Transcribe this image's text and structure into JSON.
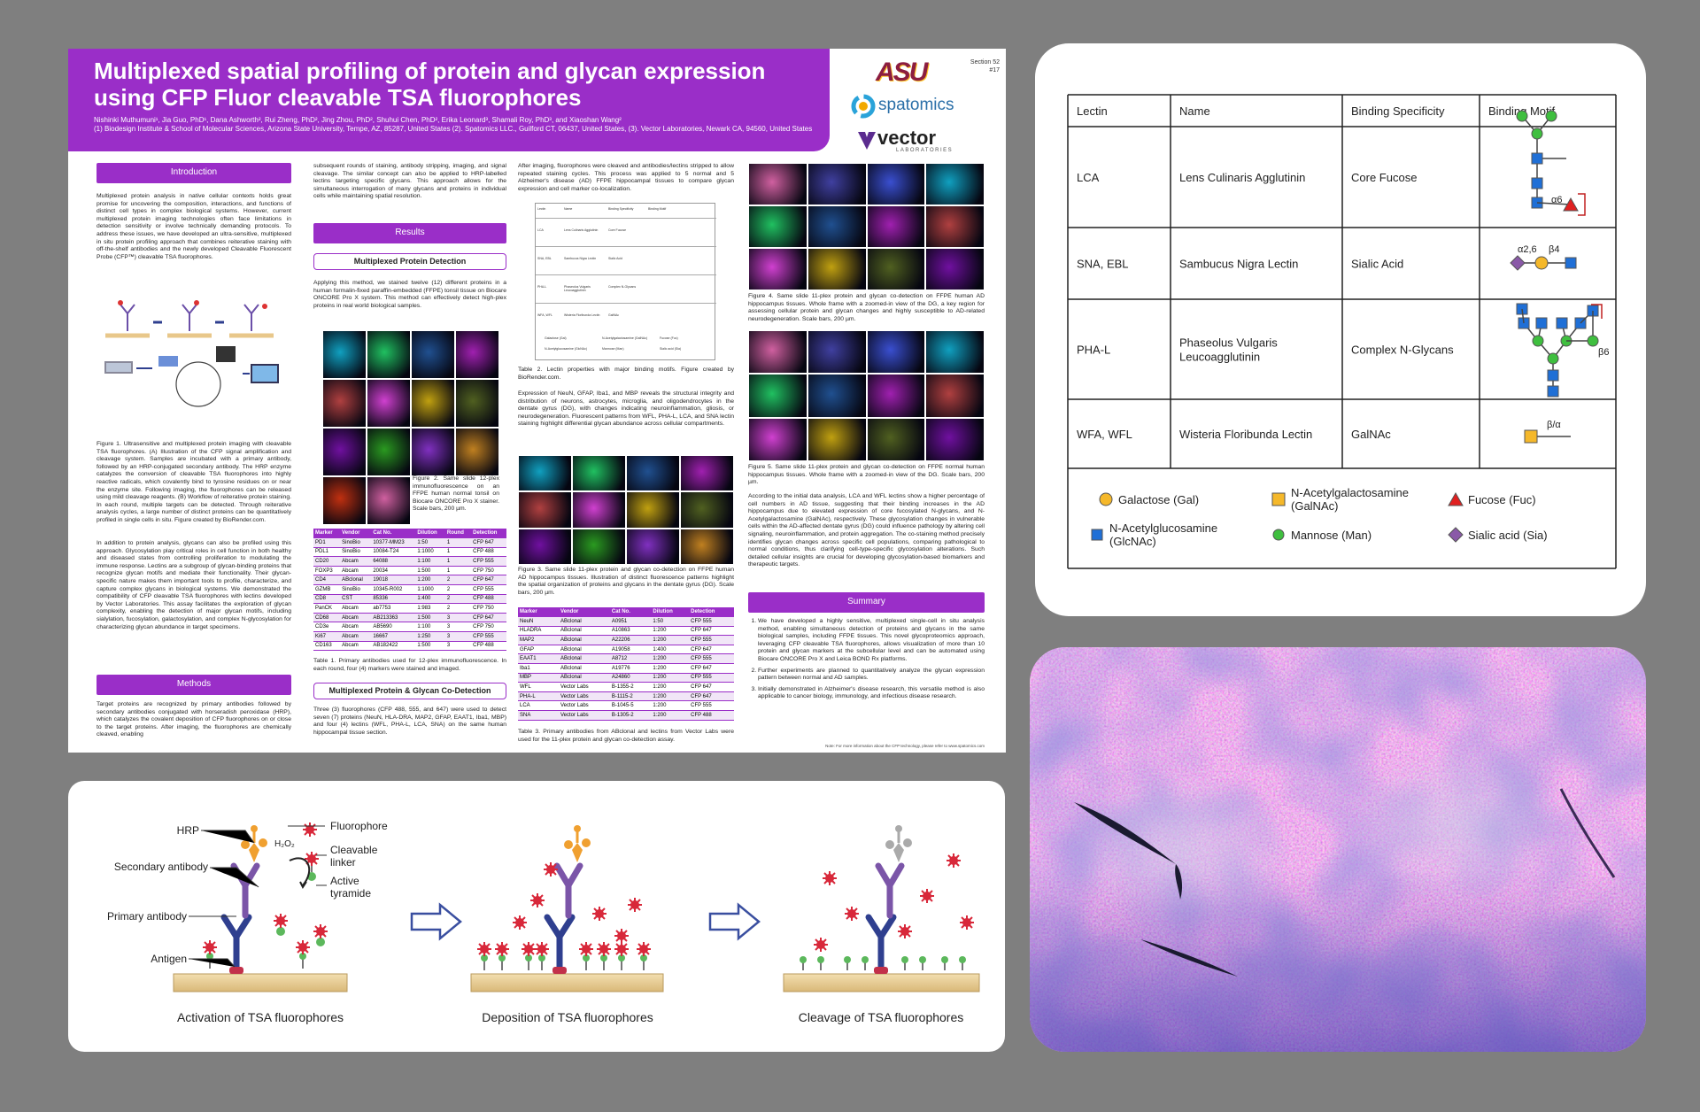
{
  "poster": {
    "title": "Multiplexed spatial profiling of protein and glycan expression using CFP Fluor cleavable TSA fluorophores",
    "authors": "Nishinki Muthumuni¹, Jia Guo, PhD¹, Dana Ashworth², Rui Zheng, PhD², Jing Zhou, PhD², Shuhui Chen, PhD², Erika Leonard³, Shamali Roy, PhD³, and Xiaoshan Wang²",
    "affiliations": "(1) Biodesign Institute & School of Molecular Sciences, Arizona State University, Tempe, AZ, 85287, United States (2). Spatomics LLC., Guilford CT, 06437, United States, (3). Vector Laboratories, Newark CA, 94560, United States",
    "section": "Section 52",
    "number": "#17",
    "logos": [
      "ASU",
      "spatomics",
      "vector",
      "LABORATORIES"
    ],
    "intro_heading": "Introduction",
    "intro": "Multiplexed protein analysis in native cellular contexts holds great promise for uncovering the composition, interactions, and functions of distinct cell types in complex biological systems. However, current multiplexed protein imaging technologies often face limitations in detection sensitivity or involve technically demanding protocols. To address these issues, we have developed an ultra-sensitive, multiplexed in situ protein profiling approach that combines reiterative staining with off-the-shelf antibodies and the newly developed Cleavable Fluorescent Probe (CFP™) cleavable TSA fluorophores.",
    "fig1_caption": "Figure 1. Ultrasensitive and multiplexed protein imaging with cleavable TSA fluorophores. (A) Illustration of the CFP signal amplification and cleavage system. Samples are incubated with a primary antibody, followed by an HRP-conjugated secondary antibody. The HRP enzyme catalyzes the conversion of cleavable TSA fluorophores into highly reactive radicals, which covalently bind to tyrosine residues on or near the enzyme site. Following imaging, the fluorophores can be released using mild cleavage reagents. (B) Workflow of reiterative protein staining. In each round, multiple targets can be detected. Through reiterative analysis cycles, a large number of distinct proteins can be quantitatively profiled in single cells in situ. Figure created by BioRender.com.",
    "glycan_text": "In addition to protein analysis, glycans can also be profiled using this approach. Glycosylation play critical roles in cell function in both healthy and diseased states from controlling proliferation to modulating the immune response. Lectins are a subgroup of glycan-binding proteins that recognize glycan motifs and mediate their functionality. Their glycan-specific nature makes them important tools to profile, characterize, and capture complex glycans in biological systems. We demonstrated the compatibility of CFP cleavable TSA fluorophores with lectins developed by Vector Laboratories. This assay facilitates the exploration of glycan complexity, enabling the detection of major glycan motifs, including sialylation, fucosylation, galactosylation, and complex N-glycosylation for characterizing glycan abundance in target specimens.",
    "methods_heading": "Methods",
    "methods": "Target proteins are recognized by primary antibodies followed by secondary antibodies conjugated with horseradish peroxidase (HRP), which catalyzes the covalent deposition of CFP fluorophores on or close to the target proteins. After imaging, the fluorophores are chemically cleaved, enabling",
    "methods_cont": "subsequent rounds of staining, antibody stripping, imaging, and signal cleavage. The similar concept can also be applied to HRP-labelled lectins targeting specific glycans. This approach allows for the simultaneous interrogation of many glycans and proteins in individual cells while maintaining spatial resolution.",
    "results_heading": "Results",
    "protein_heading": "Multiplexed Protein Detection",
    "protein_text": "Applying this method, we stained twelve (12) different proteins in a human formalin-fixed paraffin-embedded (FFPE) tonsil tissue on Biocare ONCORE Pro X system. This method can effectively detect high-plex proteins in real world biological samples.",
    "fig2_caption": "Figure 2. Same slide 12-plex immunofluorescence on an FFPE human normal tonsil on Biocare ONCORE Pro X stainer. Scale bars, 200 µm.",
    "table1": {
      "header": [
        "Marker",
        "Vendor",
        "Cat No.",
        "Dilution",
        "Round",
        "Detection"
      ],
      "rows": [
        [
          "PD1",
          "SinoBio",
          "10377-MM23",
          "1:50",
          "1",
          "CFP 647"
        ],
        [
          "PDL1",
          "SinoBio",
          "10084-T24",
          "1:1000",
          "1",
          "CFP 488"
        ],
        [
          "CD20",
          "Abcam",
          "64088",
          "1:100",
          "1",
          "CFP 555"
        ],
        [
          "FOXP3",
          "Abcam",
          "20034",
          "1:500",
          "1",
          "CFP 750"
        ],
        [
          "CD4",
          "ABclonal",
          "19018",
          "1:200",
          "2",
          "CFP 647"
        ],
        [
          "GZMB",
          "SinoBio",
          "10345-R002",
          "1:1000",
          "2",
          "CFP 555"
        ],
        [
          "CD8",
          "CST",
          "85336",
          "1:400",
          "2",
          "CFP 488"
        ],
        [
          "PanCK",
          "Abcam",
          "ab7753",
          "1:983",
          "2",
          "CFP 750"
        ],
        [
          "CD68",
          "Abcam",
          "AB213363",
          "1:500",
          "3",
          "CFP 647"
        ],
        [
          "CD3e",
          "Abcam",
          "AB5690",
          "1:100",
          "3",
          "CFP 750"
        ],
        [
          "Ki67",
          "Abcam",
          "16667",
          "1:250",
          "3",
          "CFP 555"
        ],
        [
          "CD163",
          "Abcam",
          "AB182422",
          "1:500",
          "3",
          "CFP 488"
        ]
      ]
    },
    "table1_caption": "Table 1. Primary antibodies used for 12-plex immunofluorescence. In each round, four (4) markers were stained and imaged.",
    "codetect_heading": "Multiplexed Protein & Glycan Co-Detection",
    "codetect_text": "Three (3) fluorophores (CFP 488, 555, and 647) were used to detect seven (7) proteins (NeuN, HLA-DRA, MAP2, GFAP, EAAT1, Iba1, MBP) and four (4) lectins (WFL, PHA-L, LCA, SNA) on the same human hippocampal tissue section.",
    "codetect_cont": "After imaging, fluorophores were cleaved and antibodies/lectins stripped to allow repeated staining cycles. This process was applied to 5 normal and 5 Alzheimer's disease (AD) FFPE hippocampal tissues to compare glycan expression and cell marker co-localization.",
    "table2_caption": "Table 2. Lectin properties with major binding motifs. Figure created by BioRender.com.",
    "expression_text": "Expression of NeuN, GFAP, Iba1, and MBP reveals the structural integrity and distribution of neurons, astrocytes, microglia, and oligodendrocytes in the dentate gyrus (DG), with changes indicating neuroinflammation, gliosis, or neurodegeneration. Fluorescent patterns from WFL, PHA-L, LCA, and SNA lectin staining highlight differential glycan abundance across cellular compartments.",
    "fig3_caption": "Figure 3. Same slide 11-plex protein and glycan co-detection on FFPE human AD hippocampus tissues. Illustration of distinct fluorescence patterns highlight the spatial organization of proteins and glycans in the dentate gyrus (DG). Scale bars, 200 µm.",
    "table3": {
      "header": [
        "Marker",
        "Vendor",
        "Cat No.",
        "Dilution",
        "Detection"
      ],
      "rows": [
        [
          "NeuN",
          "ABclonal",
          "A0951",
          "1:50",
          "CFP 555"
        ],
        [
          "HLADRA",
          "ABclonal",
          "A10863",
          "1:200",
          "CFP 647"
        ],
        [
          "MAP2",
          "ABclonal",
          "A22206",
          "1:200",
          "CFP 555"
        ],
        [
          "GFAP",
          "ABclonal",
          "A19058",
          "1:400",
          "CFP 647"
        ],
        [
          "EAAT1",
          "ABclonal",
          "A8712",
          "1:200",
          "CFP 555"
        ],
        [
          "Iba1",
          "ABclonal",
          "A19776",
          "1:200",
          "CFP 647"
        ],
        [
          "MBP",
          "ABclonal",
          "A24860",
          "1:200",
          "CFP 555"
        ],
        [
          "WFL",
          "Vector Labs",
          "B-1355-2",
          "1:200",
          "CFP 647"
        ],
        [
          "PHA-L",
          "Vector Labs",
          "B-1115-2",
          "1:200",
          "CFP 647"
        ],
        [
          "LCA",
          "Vector Labs",
          "B-1045-5",
          "1:200",
          "CFP 555"
        ],
        [
          "SNA",
          "Vector Labs",
          "B-1305-2",
          "1:200",
          "CFP 488"
        ]
      ]
    },
    "table3_caption": "Table 3. Primary antibodies from ABclonal and lectins from Vector Labs were used for the 11-plex protein and glycan co-detection assay.",
    "fig4_caption": "Figure 4. Same slide 11-plex protein and glycan co-detection on FFPE human AD hippocampus tissues. Whole frame with a zoomed-in view of the DG, a key region for assessing cellular protein and glycan changes and highly susceptible to AD-related neurodegeneration. Scale bars, 200 µm.",
    "fig5_caption": "Figure 5. Same slide 11-plex protein and glycan co-detection on FFPE normal human hippocampus tissues. Whole frame with a zoomed-in view of the DG. Scale bars, 200 µm.",
    "analysis_text": "According to the initial data analysis, LCA and WFL lectins show a higher percentage of cell numbers in AD tissue, suggesting that their binding increases in the AD hippocampus due to elevated expression of core fucosylated N-glycans, and N-Acetylgalactosamine (GalNAc), respectively. These glycosylation changes in vulnerable cells within the AD-affected dentate gyrus (DG) could influence pathology by altering cell signaling, neuroinflammation, and protein aggregation. The co-staining method precisely identifies glycan changes across specific cell populations, comparing pathological to normal conditions, thus clarifying cell-type-specific glycosylation alterations. Such detailed cellular insights are crucial for developing glycosylation-based biomarkers and therapeutic targets.",
    "summary_heading": "Summary",
    "summary": [
      "We have developed a highly sensitive, multiplexed single-cell in situ analysis method, enabling simultaneous detection of proteins and glycans in the same biological samples, including FFPE tissues. This novel glycoproteomics approach, leveraging CFP cleavable TSA fluorophores, allows visualization of more than 10 protein and glycan markers at the subcellular level and can be automated using Biocare ONCORE Pro X and Leica BOND Rx platforms.",
      "Further experiments are planned to quantitatively analyze the glycan expression pattern between normal and AD samples.",
      "Initially demonstrated in Alzheimer's disease research, this versatile method is also applicable to cancer biology, immunology, and infectious disease research."
    ],
    "note": "Note: For more information about the CFP technology, please refer to www.spatomics.com"
  },
  "lectin_table": {
    "header": [
      "Lectin",
      "Name",
      "Binding Specificity",
      "Binding Motif"
    ],
    "rows": [
      {
        "lectin": "LCA",
        "name": "Lens Culinaris Agglutinin",
        "specificity": "Core Fucose",
        "motif_labels": [
          "α6"
        ]
      },
      {
        "lectin": "SNA, EBL",
        "name": "Sambucus Nigra Lectin",
        "specificity": "Sialic Acid",
        "motif_labels": [
          "α2,6",
          "β4"
        ]
      },
      {
        "lectin": "PHA-L",
        "name": "Phaseolus Vulgaris Leucoagglutinin",
        "specificity": "Complex N-Glycans",
        "motif_labels": [
          "β6"
        ]
      },
      {
        "lectin": "WFA, WFL",
        "name": "Wisteria Floribunda Lectin",
        "specificity": "GalNAc",
        "motif_labels": [
          "β/α"
        ]
      }
    ],
    "legend": [
      "Galactose (Gal)",
      "N-Acetylgalactosamine (GalNAc)",
      "Fucose (Fuc)",
      "N-Acetylglucosamine (GlcNAc)",
      "Mannose (Man)",
      "Sialic acid (Sia)"
    ]
  },
  "diagram": {
    "labels": {
      "hrp": "HRP",
      "fluorophore": "Fluorophore",
      "h2o2": "H₂O₂",
      "linker": "Cleavable linker",
      "tyramide": "Active tyramide",
      "secondary": "Secondary antibody",
      "primary": "Primary antibody",
      "antigen": "Antigen"
    },
    "stages": [
      "Activation of TSA fluorophores",
      "Deposition of TSA fluorophores",
      "Cleavage of TSA fluorophores"
    ]
  }
}
